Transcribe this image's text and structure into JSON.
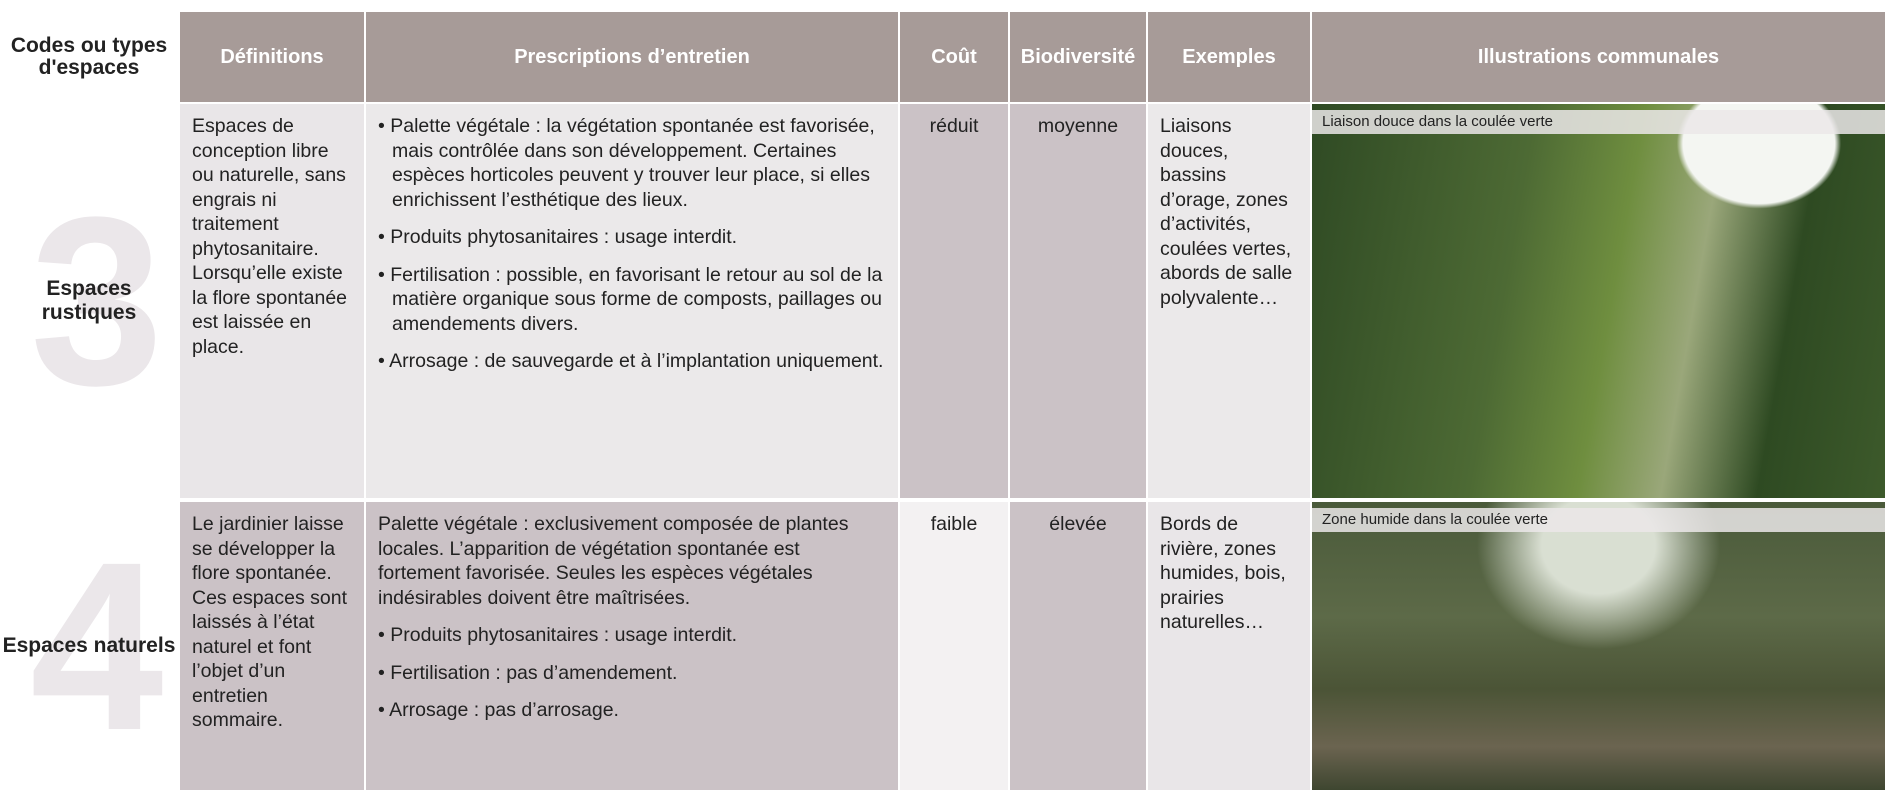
{
  "header": {
    "columns": [
      "Codes ou types d'espaces",
      "Définitions",
      "Prescriptions d’entretien",
      "Coût",
      "Biodiversité",
      "Exemples",
      "Illustrations communales"
    ]
  },
  "rows": [
    {
      "number": "3",
      "code": "Espaces rustiques",
      "definition": "Espaces de conception libre ou naturelle, sans engrais ni traitement phytosanitaire. Lorsqu’elle existe la flore spontanée est laissée en place.",
      "prescriptions": [
        "• Palette végétale : la végétation spontanée est favorisée, mais contrôlée dans son développement. Certaines espèces horticoles peuvent y trouver leur place, si elles enrichissent l’esthétique des lieux.",
        "• Produits phytosanitaires : usage interdit.",
        "• Fertilisation : possible, en favorisant le retour au sol de la matière organique sous forme de composts, paillages ou amendements divers.",
        "• Arrosage : de sauvegarde et à l’implantation uniquement."
      ],
      "cout": "réduit",
      "biodiversite": "moyenne",
      "exemples": "Liaisons douces, bassins d’orage, zones d’activités, coulées vertes, abords de salle polyvalente…",
      "illustration": "Liaison douce dans la coulée verte"
    },
    {
      "number": "4",
      "code": "Espaces naturels",
      "definition": "Le jardinier laisse se développer la flore spontanée. Ces espaces sont laissés à l’état naturel et font l’objet d’un entretien sommaire.",
      "prescriptions": [
        "Palette végétale : exclusivement composée de plantes locales. L’apparition de végétation spontanée est fortement favorisée. Seules les espèces végétales indésirables doivent être maîtrisées.",
        "• Produits phytosanitaires : usage interdit.",
        "• Fertilisation : pas d’amendement.",
        "• Arrosage : pas d’arrosage."
      ],
      "cout": "faible",
      "biodiversite": "élevée",
      "exemples": "Bords de rivière, zones humides, bois, prairies naturelles…",
      "illustration": "Zone humide dans la coulée verte"
    }
  ]
}
